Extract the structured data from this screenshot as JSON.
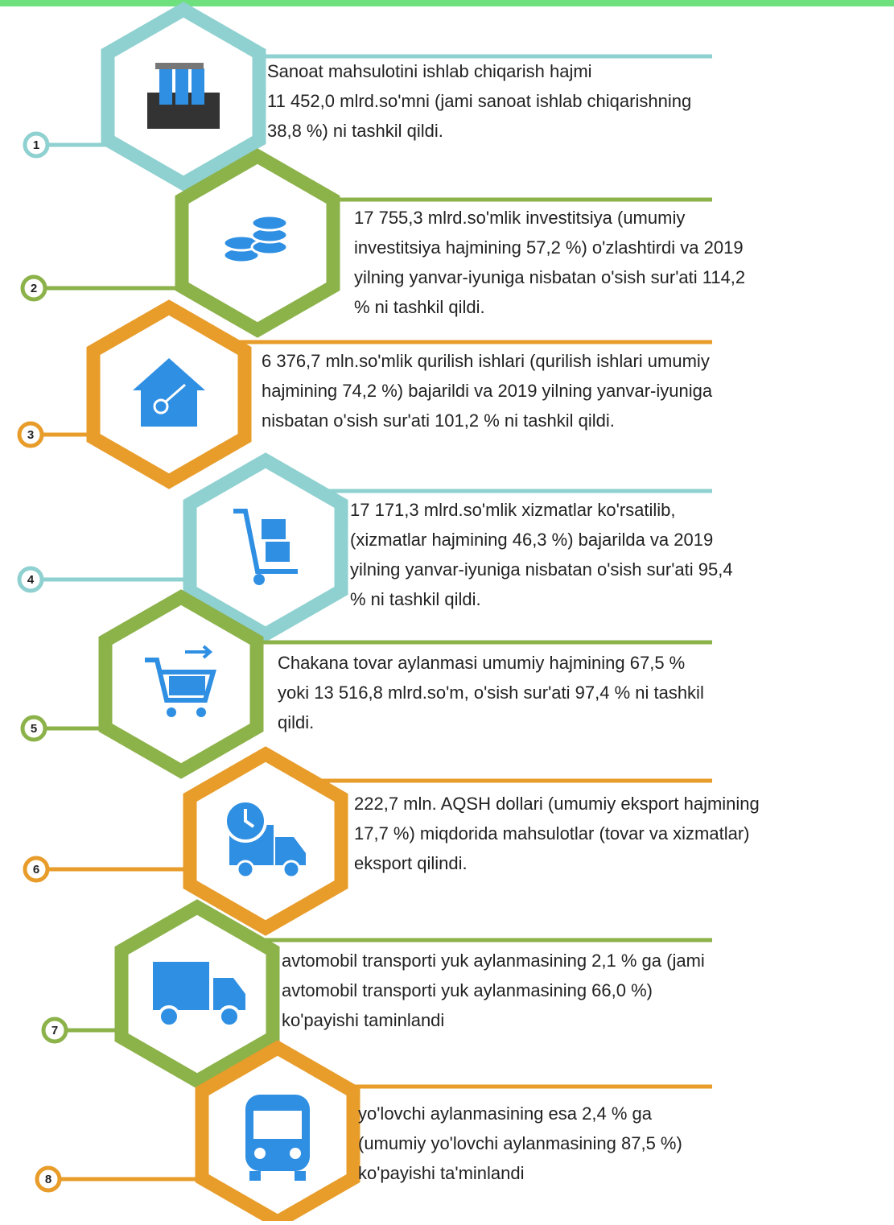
{
  "items": [
    {
      "number": "1",
      "color": "#8fd0d0",
      "lines": [
        "Sanoat mahsulotini ishlab chiqarish hajmi",
        "11 452,0 mlrd.so'mni (jami sanoat ishlab chiqarishning",
        " 38,8 %) ni tashkil qildi."
      ]
    },
    {
      "number": "2",
      "color": "#8cb24a",
      "lines": [
        "17 755,3 mlrd.so'mlik investitsiya (umumiy",
        "investitsiya hajmining 57,2 %) o'zlashtirdi va 2019",
        "yilning yanvar-iyuniga nisbatan o'sish sur'ati 114,2",
        "% ni tashkil qildi."
      ]
    },
    {
      "number": "3",
      "color": "#e89c2a",
      "lines": [
        "6 376,7 mln.so'mlik qurilish ishlari (qurilish ishlari umumiy",
        "hajmining 74,2 %) bajarildi va 2019 yilning yanvar-iyuniga",
        "nisbatan o'sish sur'ati 101,2 % ni tashkil qildi."
      ]
    },
    {
      "number": "4",
      "color": "#8fd0d0",
      "lines": [
        " 17 171,3 mlrd.so'mlik xizmatlar ko'rsatilib,",
        "(xizmatlar hajmining 46,3 %) bajarilda va 2019",
        "yilning yanvar-iyuniga nisbatan o'sish sur'ati 95,4",
        "% ni tashkil qildi."
      ]
    },
    {
      "number": "5",
      "color": "#8cb24a",
      "lines": [
        "Chakana tovar aylanmasi umumiy hajmining 67,5 %",
        "yoki 13 516,8 mlrd.so'm, o'sish sur'ati 97,4 % ni tashkil",
        "qildi."
      ]
    },
    {
      "number": "6",
      "color": "#e89c2a",
      "lines": [
        " 222,7 mln. AQSH dollari (umumiy eksport hajmining",
        "17,7 %) miqdorida mahsulotlar (tovar va xizmatlar)",
        "eksport qilindi."
      ]
    },
    {
      "number": "7",
      "color": "#8cb24a",
      "lines": [
        "avtomobil transporti yuk aylanmasining 2,1 % ga (jami",
        "avtomobil transporti yuk aylanmasining 66,0 %)",
        "ko'payishi taminlandi"
      ]
    },
    {
      "number": "8",
      "color": "#e89c2a",
      "lines": [
        "yo'lovchi aylanmasining esa 2,4 % ga",
        "(umumiy yo'lovchi aylanmasining 87,5 %)",
        "ko'payishi ta'minlandi"
      ]
    }
  ]
}
